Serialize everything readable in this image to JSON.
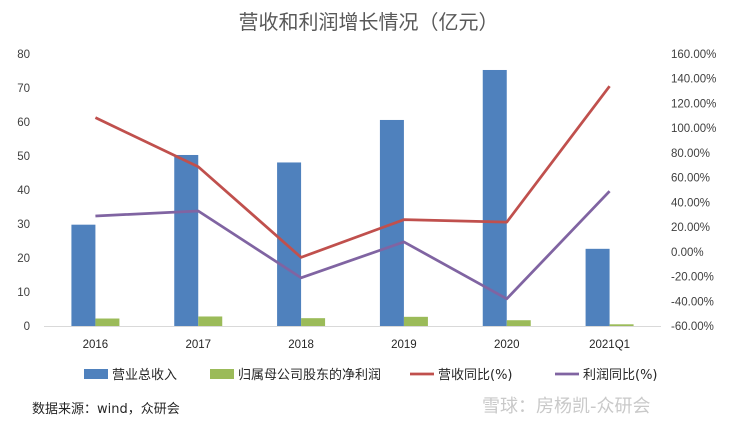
{
  "chart_data": {
    "type": "bar",
    "title": "营收和利润增长情况（亿元）",
    "categories": [
      "2016",
      "2017",
      "2018",
      "2019",
      "2020",
      "2021Q1"
    ],
    "bar_series": [
      {
        "name": "营业总收入",
        "color": "#4F81BD",
        "values": [
          29.8,
          50.3,
          48.1,
          60.6,
          75.3,
          22.7
        ]
      },
      {
        "name": "归属母公司股东的净利润",
        "color": "#9BBB59",
        "values": [
          2.2,
          2.8,
          2.3,
          2.7,
          1.7,
          0.5
        ]
      }
    ],
    "line_series": [
      {
        "name": "营收同比(%)",
        "color": "#C0504D",
        "values": [
          108.5,
          68.8,
          -4.5,
          26.0,
          24.0,
          134.0
        ]
      },
      {
        "name": "利润同比(%)",
        "color": "#8064A2",
        "values": [
          29.0,
          33.0,
          -21.0,
          8.0,
          -38.0,
          49.0
        ]
      }
    ],
    "y_left": {
      "min": 0,
      "max": 80,
      "step": 10,
      "ticks": [
        "0",
        "10",
        "20",
        "30",
        "40",
        "50",
        "60",
        "70",
        "80"
      ]
    },
    "y_right": {
      "min": -60,
      "max": 160,
      "step": 20,
      "ticks": [
        "-60.00%",
        "-40.00%",
        "-20.00%",
        "0.00%",
        "20.00%",
        "40.00%",
        "60.00%",
        "80.00%",
        "100.00%",
        "120.00%",
        "140.00%",
        "160.00%"
      ]
    },
    "legend": [
      "营业总收入",
      "归属母公司股东的净利润",
      "营收同比(%)",
      "利润同比(%)"
    ],
    "legend_position": "bottom"
  },
  "source_note": "数据来源：wind，众研会",
  "watermark": "雪球：房杨凯-众研会"
}
